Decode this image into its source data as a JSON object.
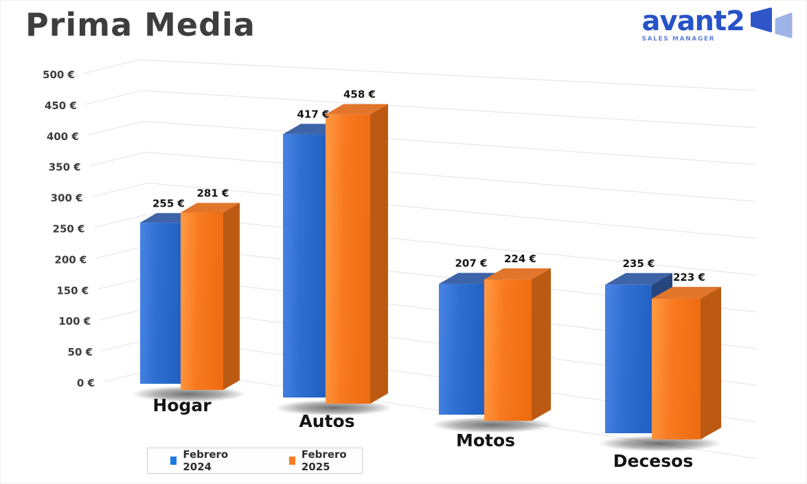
{
  "header": {
    "title": "Prima Media",
    "logo": {
      "brand": "avant2",
      "tagline": "SALES MANAGER"
    }
  },
  "chart_data": {
    "type": "bar",
    "variant": "3d-clustered-column",
    "title": "Prima Media",
    "categories": [
      "Hogar",
      "Autos",
      "Motos",
      "Decesos"
    ],
    "series": [
      {
        "name": "Febrero 2024",
        "color": "#1b7ae2",
        "values": [
          255,
          417,
          207,
          235
        ]
      },
      {
        "name": "Febrero 2025",
        "color": "#fb7d24",
        "values": [
          281,
          458,
          224,
          223
        ]
      }
    ],
    "value_suffix": " €",
    "y_axis": {
      "min": 0,
      "max": 500,
      "step": 50,
      "ticks": [
        "0 €",
        "50 €",
        "100 €",
        "150 €",
        "200 €",
        "250 €",
        "300 €",
        "350 €",
        "400 €",
        "450 €",
        "500 €"
      ]
    },
    "ylim": [
      0,
      500
    ],
    "grid": true,
    "legend": {
      "position": "bottom-left"
    }
  },
  "colors": {
    "blue_front_light": "#4a84e4",
    "blue_front": "#2e6fd2",
    "blue_front_dark": "#2361c4",
    "blue_top": "#3d64a8",
    "blue_side": "#27457e",
    "orange_front_light": "#ff9a44",
    "orange_front": "#f8791f",
    "orange_front_dark": "#ef6d12",
    "orange_top": "#e2762b",
    "orange_side": "#bc5a13",
    "grid_line": "#e8e8e8",
    "tick_text": "#3d3d3d",
    "label_text": "#141414",
    "title_text": "#3e3e3e",
    "brand_blue": "#2753c9",
    "tagline_blue": "#5e82d8",
    "logo_mark_dark": "#2f55c8",
    "logo_mark_light": "#9db3e8"
  }
}
